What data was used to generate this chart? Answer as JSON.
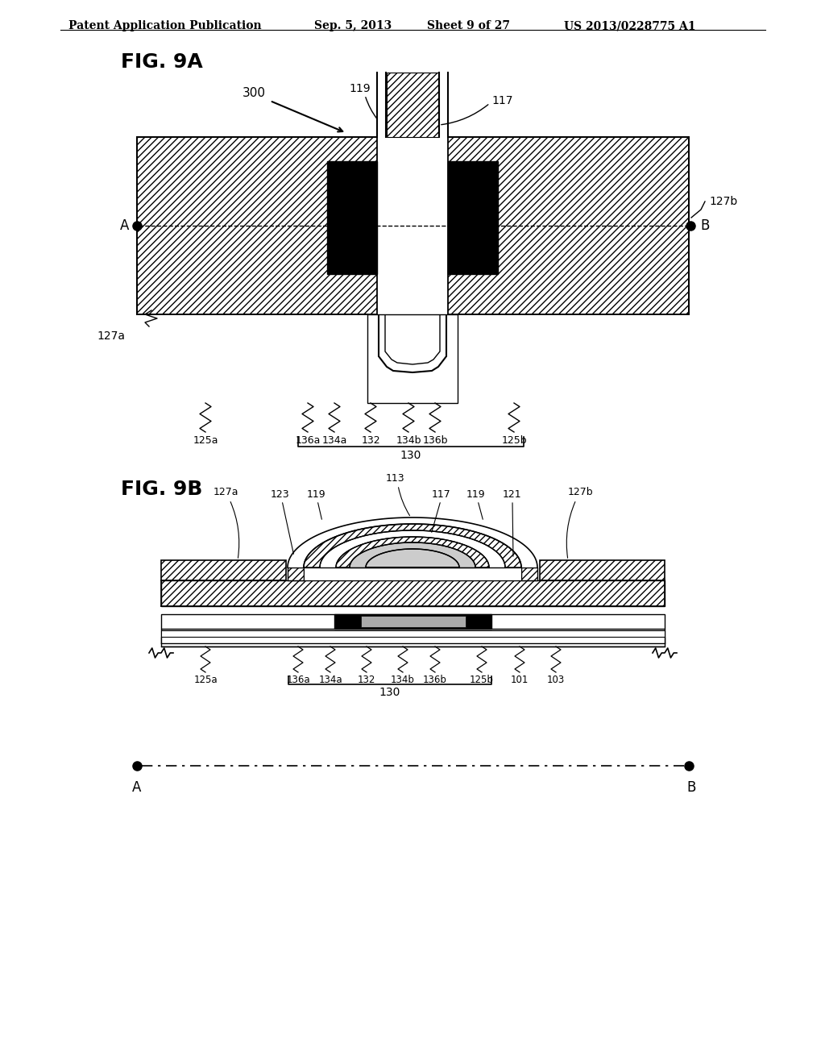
{
  "background_color": "#ffffff",
  "header_text": "Patent Application Publication",
  "header_date": "Sep. 5, 2013",
  "header_sheet": "Sheet 9 of 27",
  "header_patent": "US 2013/0228775 A1",
  "fig9a_label": "FIG. 9A",
  "fig9b_label": "FIG. 9B"
}
